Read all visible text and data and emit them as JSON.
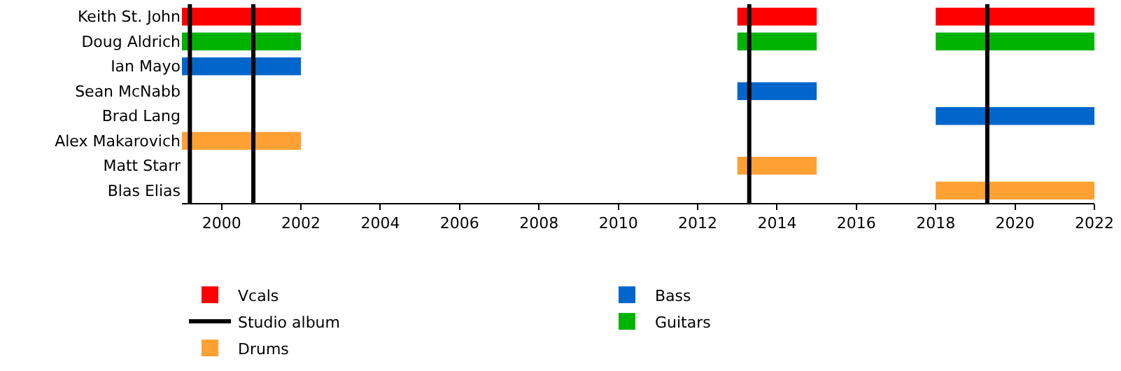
{
  "chart_data": {
    "type": "bar",
    "orientation": "horizontal",
    "categories": [
      "Keith St. John",
      "Doug Aldrich",
      "Ian Mayo",
      "Sean McNabb",
      "Brad Lang",
      "Alex Makarovich",
      "Matt Starr",
      "Blas Elias"
    ],
    "series": [
      {
        "name": "Vcals",
        "color": "#ff0000",
        "base": [
          1999,
          null,
          null,
          null,
          null,
          null,
          null,
          null
        ],
        "values": [
          3,
          null,
          null,
          null,
          null,
          null,
          null,
          null
        ]
      },
      {
        "color": "#ff0000",
        "base": [
          2013,
          null,
          null,
          null,
          null,
          null,
          null,
          null
        ],
        "values": [
          2,
          null,
          null,
          null,
          null,
          null,
          null,
          null
        ]
      },
      {
        "color": "#ff0000",
        "base": [
          2018,
          null,
          null,
          null,
          null,
          null,
          null,
          null
        ],
        "values": [
          4,
          null,
          null,
          null,
          null,
          null,
          null,
          null
        ]
      },
      {
        "name": "Guitars",
        "color": "#00b300",
        "base": [
          null,
          1999,
          null,
          null,
          null,
          null,
          null,
          null
        ],
        "values": [
          null,
          3,
          null,
          null,
          null,
          null,
          null,
          null
        ]
      },
      {
        "color": "#00b300",
        "base": [
          null,
          2013,
          null,
          null,
          null,
          null,
          null,
          null
        ],
        "values": [
          null,
          2,
          null,
          null,
          null,
          null,
          null,
          null
        ]
      },
      {
        "color": "#00b300",
        "base": [
          null,
          2018,
          null,
          null,
          null,
          null,
          null,
          null
        ],
        "values": [
          null,
          4,
          null,
          null,
          null,
          null,
          null,
          null
        ]
      },
      {
        "name": "Bass",
        "color": "#0066cc",
        "base": [
          null,
          null,
          1999,
          2013,
          2018,
          null,
          null,
          null
        ],
        "values": [
          null,
          null,
          3,
          2,
          4,
          null,
          null,
          null
        ]
      },
      {
        "name": "Drums",
        "color": "#ffa033",
        "base": [
          null,
          null,
          null,
          null,
          null,
          1999,
          2013,
          2018
        ],
        "values": [
          null,
          null,
          null,
          null,
          null,
          3,
          2,
          4
        ]
      }
    ],
    "ref_lines": [
      {
        "axis": "x",
        "value": 1999.2,
        "label": "Studio album",
        "color": "#000000"
      },
      {
        "axis": "x",
        "value": 2000.8,
        "color": "#000000"
      },
      {
        "axis": "x",
        "value": 2013.3,
        "color": "#000000"
      },
      {
        "axis": "x",
        "value": 2019.3,
        "color": "#000000"
      }
    ],
    "xlim": [
      1999,
      2022
    ],
    "xticks": [
      2000,
      2002,
      2004,
      2006,
      2008,
      2010,
      2012,
      2014,
      2016,
      2018,
      2020,
      2022
    ],
    "legend": "bottom",
    "grid": false
  }
}
